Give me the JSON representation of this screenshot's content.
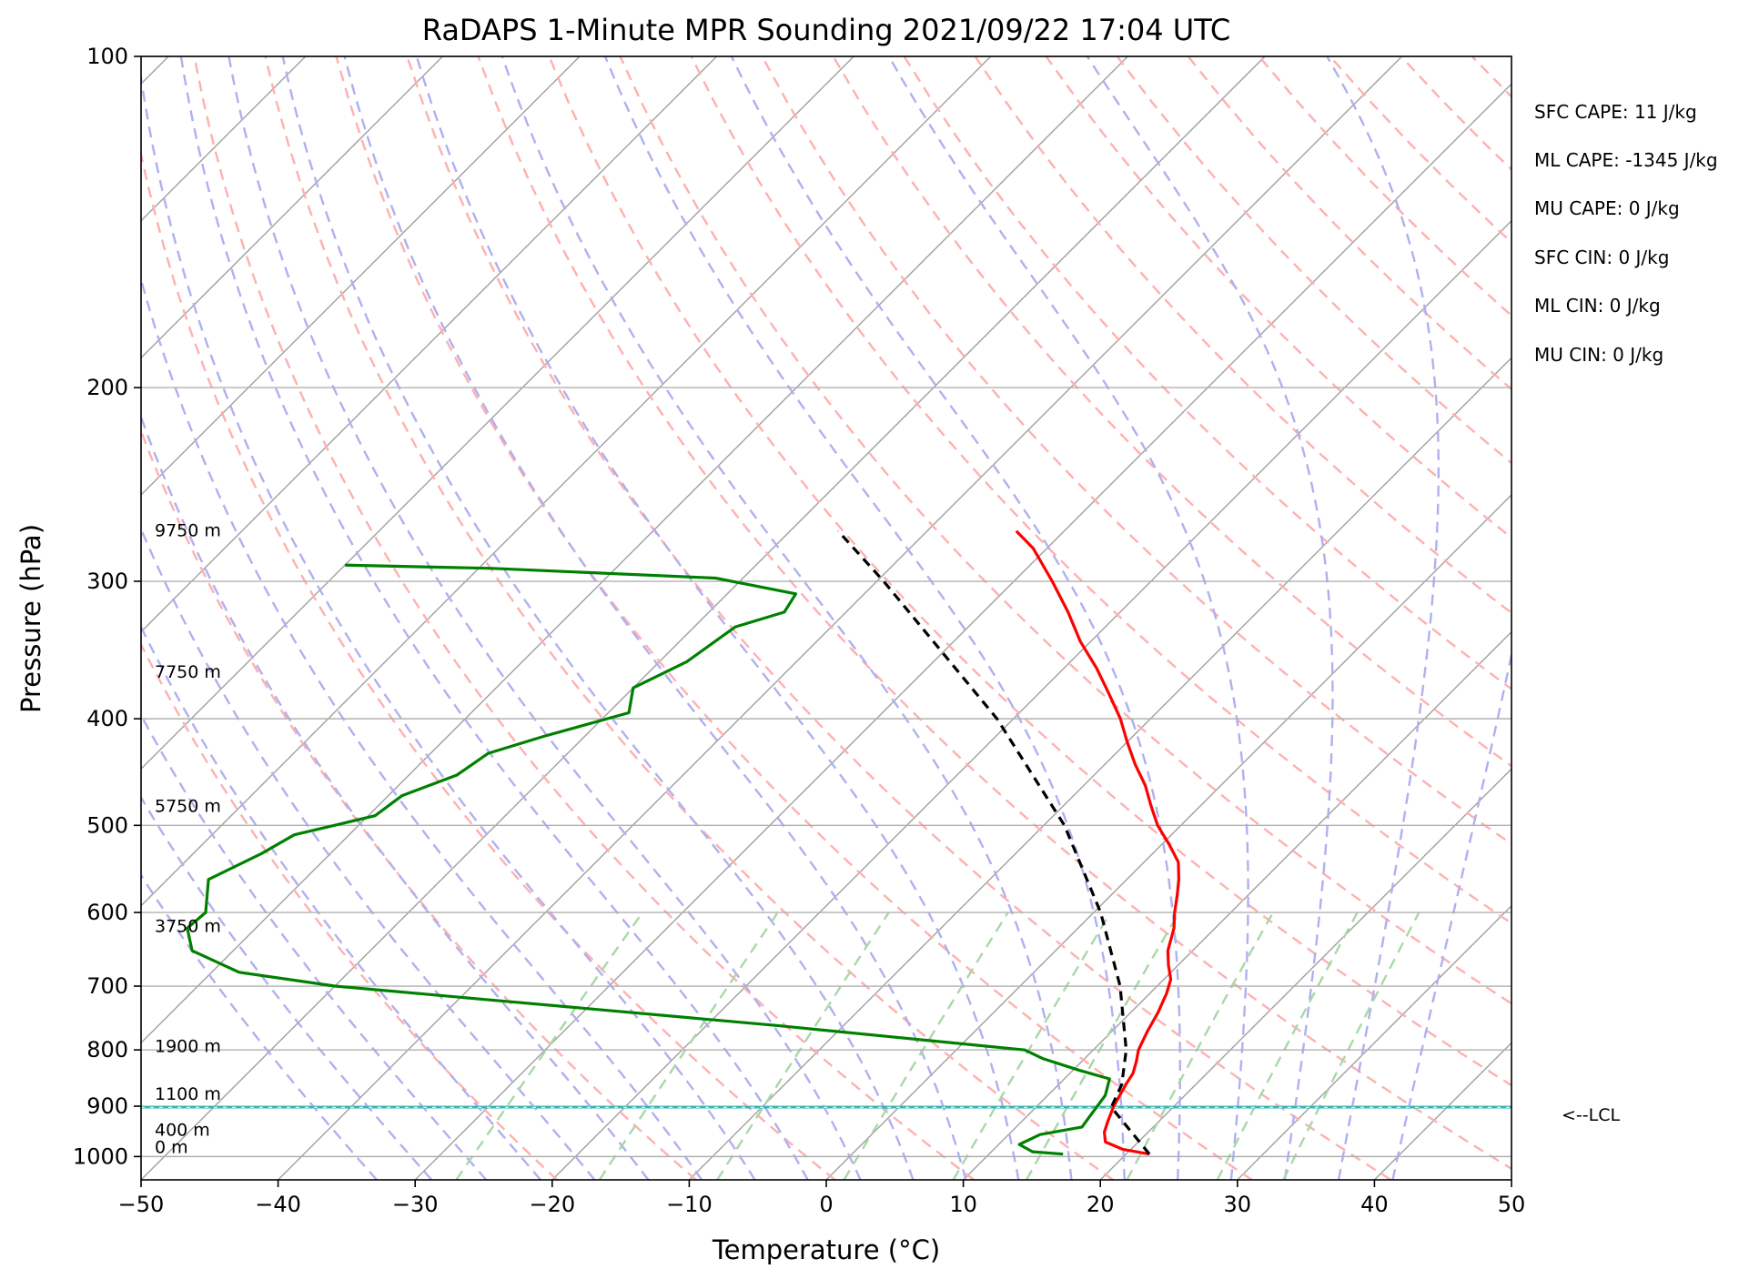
{
  "chart_data": {
    "type": "line",
    "title": "RaDAPS 1-Minute MPR Sounding 2021/09/22 17:04 UTC",
    "xlabel": "Temperature (°C)",
    "ylabel": "Pressure (hPa)",
    "xlim": [
      -50,
      50
    ],
    "ylim": [
      1050,
      100
    ],
    "y_scale": "log",
    "skew_t": true,
    "grid": true,
    "x_ticks": [
      -50,
      -40,
      -30,
      -20,
      -10,
      0,
      10,
      20,
      30,
      40,
      50
    ],
    "x_tick_labels": [
      "−50",
      "−40",
      "−30",
      "−20",
      "−10",
      "0",
      "10",
      "20",
      "30",
      "40",
      "50"
    ],
    "y_ticks": [
      100,
      200,
      300,
      400,
      500,
      600,
      700,
      800,
      900,
      1000
    ],
    "y_tick_labels": [
      "100",
      "200",
      "300",
      "400",
      "500",
      "600",
      "700",
      "800",
      "900",
      "1000"
    ],
    "series": [
      {
        "role": "temperature",
        "color": "#ff0000",
        "points": [
          {
            "p": 995,
            "t": 21.7
          },
          {
            "p": 985,
            "t": 19.4
          },
          {
            "p": 970,
            "t": 17.6
          },
          {
            "p": 950,
            "t": 16.8
          },
          {
            "p": 930,
            "t": 16.3
          },
          {
            "p": 900,
            "t": 15.6
          },
          {
            "p": 860,
            "t": 14.9
          },
          {
            "p": 840,
            "t": 14.6
          },
          {
            "p": 820,
            "t": 14.0
          },
          {
            "p": 800,
            "t": 13.3
          },
          {
            "p": 770,
            "t": 12.6
          },
          {
            "p": 740,
            "t": 12.0
          },
          {
            "p": 710,
            "t": 11.2
          },
          {
            "p": 690,
            "t": 10.5
          },
          {
            "p": 670,
            "t": 9.3
          },
          {
            "p": 650,
            "t": 8.2
          },
          {
            "p": 620,
            "t": 7.0
          },
          {
            "p": 600,
            "t": 5.9
          },
          {
            "p": 580,
            "t": 4.9
          },
          {
            "p": 560,
            "t": 3.8
          },
          {
            "p": 540,
            "t": 2.5
          },
          {
            "p": 520,
            "t": 0.5
          },
          {
            "p": 500,
            "t": -1.7
          },
          {
            "p": 480,
            "t": -3.6
          },
          {
            "p": 460,
            "t": -5.5
          },
          {
            "p": 440,
            "t": -7.8
          },
          {
            "p": 420,
            "t": -10.0
          },
          {
            "p": 400,
            "t": -12.2
          },
          {
            "p": 380,
            "t": -14.8
          },
          {
            "p": 360,
            "t": -17.6
          },
          {
            "p": 340,
            "t": -20.8
          },
          {
            "p": 320,
            "t": -23.8
          },
          {
            "p": 300,
            "t": -27.2
          },
          {
            "p": 280,
            "t": -31.0
          },
          {
            "p": 270,
            "t": -33.5
          }
        ]
      },
      {
        "role": "dewpoint",
        "color": "#008000",
        "points": [
          {
            "p": 995,
            "t": 15.4
          },
          {
            "p": 990,
            "t": 13.0
          },
          {
            "p": 975,
            "t": 11.5
          },
          {
            "p": 955,
            "t": 12.3
          },
          {
            "p": 940,
            "t": 14.8
          },
          {
            "p": 920,
            "t": 14.6
          },
          {
            "p": 880,
            "t": 14.2
          },
          {
            "p": 850,
            "t": 13.3
          },
          {
            "p": 835,
            "t": 10.5
          },
          {
            "p": 815,
            "t": 7.0
          },
          {
            "p": 800,
            "t": 5.0
          },
          {
            "p": 760,
            "t": -15.0
          },
          {
            "p": 720,
            "t": -38.0
          },
          {
            "p": 700,
            "t": -50.0
          },
          {
            "p": 680,
            "t": -58.0
          },
          {
            "p": 650,
            "t": -63.0
          },
          {
            "p": 620,
            "t": -65.0
          },
          {
            "p": 600,
            "t": -64.8
          },
          {
            "p": 560,
            "t": -67.0
          },
          {
            "p": 530,
            "t": -65.0
          },
          {
            "p": 510,
            "t": -64.0
          },
          {
            "p": 490,
            "t": -59.5
          },
          {
            "p": 470,
            "t": -59.0
          },
          {
            "p": 450,
            "t": -56.5
          },
          {
            "p": 430,
            "t": -55.8
          },
          {
            "p": 415,
            "t": -53.0
          },
          {
            "p": 395,
            "t": -48.5
          },
          {
            "p": 375,
            "t": -50.0
          },
          {
            "p": 355,
            "t": -48.0
          },
          {
            "p": 330,
            "t": -47.0
          },
          {
            "p": 320,
            "t": -44.5
          },
          {
            "p": 308,
            "t": -45.0
          },
          {
            "p": 298,
            "t": -52.0
          },
          {
            "p": 292,
            "t": -69.0
          },
          {
            "p": 290,
            "t": -80.0
          }
        ]
      },
      {
        "role": "parcel-profile",
        "color": "#000000",
        "dashed": true,
        "points": [
          {
            "p": 995,
            "t": 21.7
          },
          {
            "p": 902,
            "t": 15.5
          },
          {
            "p": 860,
            "t": 14.6
          },
          {
            "p": 800,
            "t": 12.4
          },
          {
            "p": 700,
            "t": 7.3
          },
          {
            "p": 600,
            "t": 0.5
          },
          {
            "p": 500,
            "t": -8.5
          },
          {
            "p": 400,
            "t": -21.2
          },
          {
            "p": 300,
            "t": -39.5
          },
          {
            "p": 270,
            "t": -46.5
          }
        ]
      }
    ],
    "height_labels": [
      "0 m",
      "400 m",
      "1100 m",
      "1900 m",
      "3750 m",
      "5750 m",
      "7750 m",
      "9750 m"
    ],
    "height_pressures": [
      1000,
      965,
      895,
      810,
      630,
      490,
      370,
      275
    ],
    "lcl": {
      "pressure": 902,
      "label": "<--LCL",
      "color": "#2fb7b7"
    },
    "reference_lines": {
      "isotherm_color": "#a0a0a0",
      "dry_adiabat_color": "#ffb0b0",
      "moist_adiabat_color": "#b0b0f0",
      "mixing_ratio_color": "#a8d8a8"
    },
    "indices": [
      "SFC CAPE: 11 J/kg",
      "ML CAPE: -1345 J/kg",
      "MU CAPE: 0 J/kg",
      "SFC CIN: 0 J/kg",
      "ML CIN: 0 J/kg",
      "MU CIN: 0 J/kg"
    ]
  }
}
